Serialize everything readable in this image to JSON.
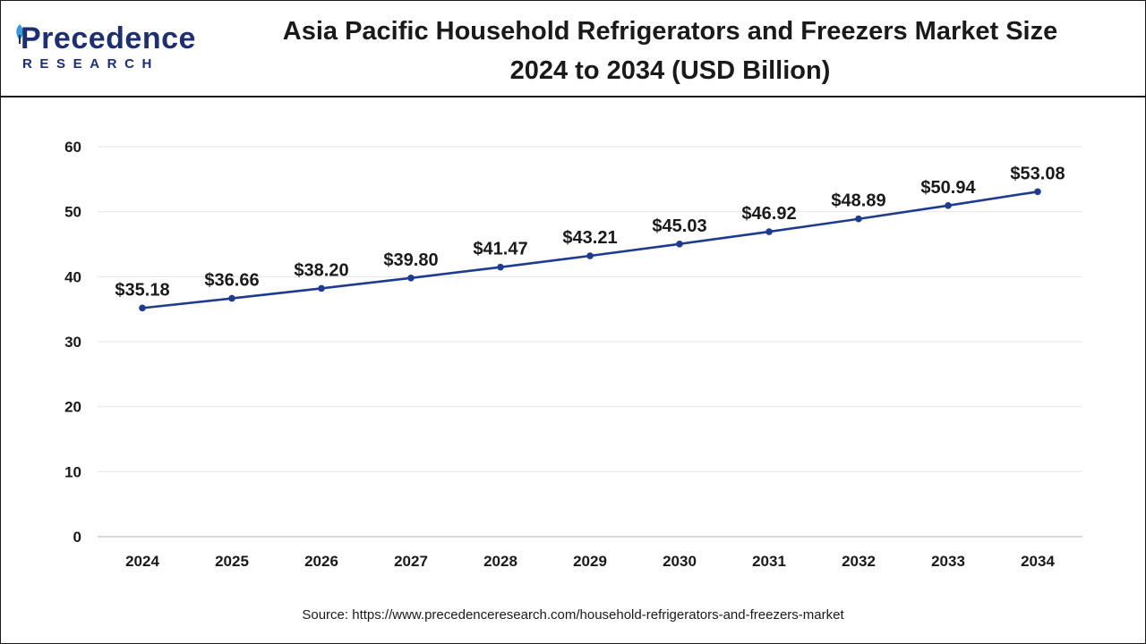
{
  "brand": {
    "name": "Precedence",
    "tagline": "RESEARCH",
    "color": "#1d2f6f",
    "accent": "#3a9ad9"
  },
  "header": {
    "title_line1": "Asia Pacific Household Refrigerators and Freezers Market Size",
    "title_line2": "2024 to 2034 (USD Billion)"
  },
  "source_text": "Source: https://www.precedenceresearch.com/household-refrigerators-and-freezers-market",
  "chart_data": {
    "type": "line",
    "title": "Asia Pacific Household Refrigerators and Freezers Market Size 2024 to 2034 (USD Billion)",
    "categories": [
      "2024",
      "2025",
      "2026",
      "2027",
      "2028",
      "2029",
      "2030",
      "2031",
      "2032",
      "2033",
      "2034"
    ],
    "series": [
      {
        "values": [
          35.18,
          36.66,
          38.2,
          39.8,
          41.47,
          43.21,
          45.03,
          46.92,
          48.89,
          50.94,
          53.08
        ],
        "labels": [
          "$35.18",
          "$36.66",
          "$38.20",
          "$39.80",
          "$41.47",
          "$43.21",
          "$45.03",
          "$46.92",
          "$48.89",
          "$50.94",
          "$53.08"
        ],
        "color": "#1f3b8f"
      }
    ],
    "yticks": [
      0,
      10,
      20,
      30,
      40,
      50,
      60
    ],
    "ylim": [
      0,
      60
    ],
    "xlabel": "",
    "ylabel": "",
    "grid": true,
    "legend": "none"
  }
}
